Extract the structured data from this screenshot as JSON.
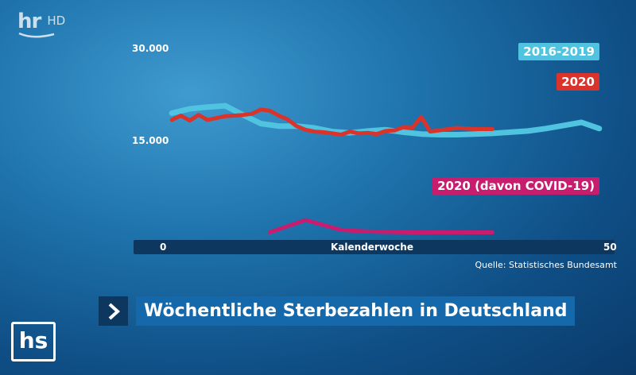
{
  "channel": {
    "logo": "hr",
    "quality": "HD"
  },
  "bug_logo": "hs",
  "headline": "Wöchentliche Sterbezahlen in Deutschland",
  "source": "Quelle: Statistisches Bundesamt",
  "chart_data": {
    "type": "line",
    "title": "",
    "xlabel": "Kalenderwoche",
    "ylabel": "",
    "xlim": [
      0,
      50
    ],
    "ylim": [
      0,
      30000
    ],
    "y_ticks": [
      15000,
      30000
    ],
    "y_tick_labels": [
      "15.000",
      "30.000"
    ],
    "x_tick_labels": [
      "0",
      "50"
    ],
    "grid": false,
    "legend": "top-right",
    "series": [
      {
        "name": "2016-2019",
        "color": "#4fc3df",
        "x": [
          1,
          3,
          5,
          7,
          9,
          11,
          13,
          15,
          17,
          19,
          21,
          23,
          25,
          27,
          29,
          31,
          33,
          35,
          37,
          39,
          41,
          43,
          45,
          47,
          49
        ],
        "y": [
          19600,
          20300,
          20600,
          20800,
          19300,
          17900,
          17500,
          17500,
          17200,
          16600,
          16400,
          16700,
          16900,
          16500,
          16200,
          16100,
          16100,
          16200,
          16300,
          16500,
          16700,
          17100,
          17600,
          18100,
          17100
        ]
      },
      {
        "name": "2020",
        "color": "#d9342b",
        "x": [
          1,
          2,
          3,
          4,
          5,
          6,
          7,
          9,
          10,
          11,
          12,
          13,
          14,
          15,
          16,
          17,
          18,
          19,
          20,
          21,
          22,
          23,
          24,
          25,
          26,
          27,
          28,
          29,
          30,
          31,
          33,
          35,
          37
        ],
        "y": [
          18500,
          19200,
          18400,
          19300,
          18500,
          18800,
          19100,
          19300,
          19500,
          20200,
          20000,
          19200,
          18600,
          17500,
          16900,
          16600,
          16500,
          16300,
          16100,
          16600,
          16300,
          16400,
          16200,
          16700,
          16800,
          17300,
          17200,
          19000,
          16600,
          16800,
          17200,
          17000,
          17000
        ]
      },
      {
        "name": "2020 (davon COVID-19)",
        "color": "#c81c6e",
        "x": [
          12,
          14,
          16,
          18,
          20,
          22,
          24,
          26,
          28,
          30,
          32,
          34,
          37
        ],
        "y": [
          200,
          1200,
          2200,
          1400,
          600,
          400,
          300,
          250,
          200,
          200,
          200,
          200,
          200
        ]
      }
    ]
  }
}
